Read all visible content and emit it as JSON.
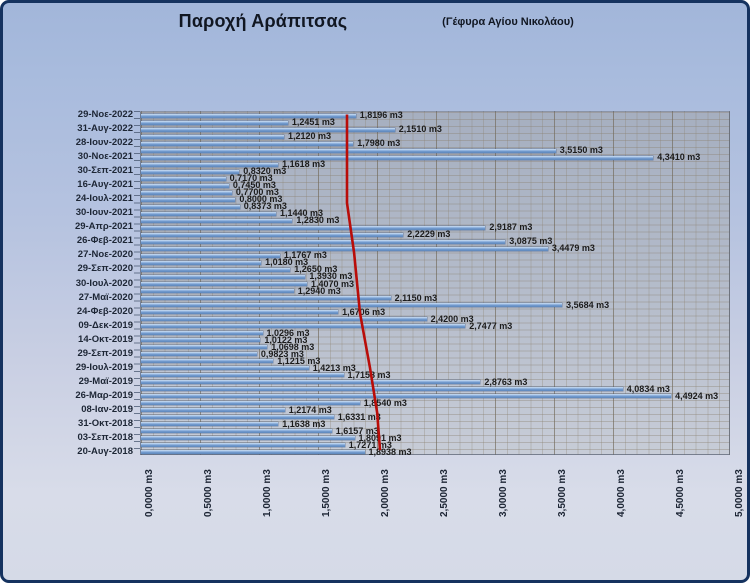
{
  "title": "Παροχή Αράπιτσας",
  "subtitle": "(Γέφυρα Αγίου Νικολάου)",
  "colors": {
    "bar": "#6b94c8",
    "trend_line": "#b90d09",
    "frame_border": "#15325f"
  },
  "chart_data": {
    "type": "bar",
    "orientation": "horizontal",
    "title": "Παροχή Αράπιτσας",
    "subtitle": "(Γέφυρα Αγίου Νικολάου)",
    "value_unit": "m3",
    "xlim": [
      0,
      5
    ],
    "grid": {
      "minor_step": 0.1,
      "major_step": 0.5,
      "grid_on": true
    },
    "legend": "none",
    "x_ticks": [
      "0,0000 m3",
      "0,5000 m3",
      "1,0000 m3",
      "1,5000 m3",
      "2,0000 m3",
      "2,5000 m3",
      "3,0000 m3",
      "3,5000 m3",
      "4,0000 m3",
      "4,5000 m3",
      "5,0000 m3"
    ],
    "bars": [
      {
        "label": "29-Νοε-2022",
        "value": 1.8196,
        "text": "1,8196 m3"
      },
      {
        "label": "",
        "value": 1.2451,
        "text": "1,2451 m3"
      },
      {
        "label": "31-Αυγ-2022",
        "value": 2.151,
        "text": "2,1510 m3"
      },
      {
        "label": "",
        "value": 1.212,
        "text": "1,2120 m3"
      },
      {
        "label": "28-Ιουν-2022",
        "value": 1.798,
        "text": "1,7980 m3"
      },
      {
        "label": "",
        "value": 3.515,
        "text": "3,5150 m3"
      },
      {
        "label": "30-Νοε-2021",
        "value": 4.341,
        "text": "4,3410 m3"
      },
      {
        "label": "",
        "value": 1.1618,
        "text": "1,1618 m3"
      },
      {
        "label": "30-Σεπ-2021",
        "value": 0.832,
        "text": "0,8320 m3"
      },
      {
        "label": "",
        "value": 0.717,
        "text": "0,7170 m3"
      },
      {
        "label": "16-Αυγ-2021",
        "value": 0.745,
        "text": "0,7450 m3"
      },
      {
        "label": "",
        "value": 0.77,
        "text": "0,7700 m3"
      },
      {
        "label": "24-Ιουλ-2021",
        "value": 0.8,
        "text": "0,8000 m3"
      },
      {
        "label": "",
        "value": 0.8373,
        "text": "0,8373 m3"
      },
      {
        "label": "30-Ιουν-2021",
        "value": 1.144,
        "text": "1,1440 m3"
      },
      {
        "label": "",
        "value": 1.283,
        "text": "1,2830 m3"
      },
      {
        "label": "29-Απρ-2021",
        "value": 2.9187,
        "text": "2,9187 m3"
      },
      {
        "label": "",
        "value": 2.2229,
        "text": "2,2229 m3"
      },
      {
        "label": "26-Φεβ-2021",
        "value": 3.0875,
        "text": "3,0875 m3"
      },
      {
        "label": "",
        "value": 3.4479,
        "text": "3,4479 m3"
      },
      {
        "label": "27-Νοε-2020",
        "value": 1.1767,
        "text": "1,1767 m3"
      },
      {
        "label": "",
        "value": 1.018,
        "text": "1,0180 m3"
      },
      {
        "label": "29-Σεπ-2020",
        "value": 1.265,
        "text": "1,2650 m3"
      },
      {
        "label": "",
        "value": 1.393,
        "text": "1,3930 m3"
      },
      {
        "label": "30-Ιουλ-2020",
        "value": 1.407,
        "text": "1,4070 m3"
      },
      {
        "label": "",
        "value": 1.294,
        "text": "1,2940 m3"
      },
      {
        "label": "27-Μαϊ-2020",
        "value": 2.115,
        "text": "2,1150 m3"
      },
      {
        "label": "",
        "value": 3.5684,
        "text": "3,5684 m3"
      },
      {
        "label": "24-Φεβ-2020",
        "value": 1.6706,
        "text": "1,6706 m3"
      },
      {
        "label": "",
        "value": 2.42,
        "text": "2,4200 m3"
      },
      {
        "label": "09-Δεκ-2019",
        "value": 2.7477,
        "text": "2,7477 m3"
      },
      {
        "label": "",
        "value": 1.0296,
        "text": "1,0296 m3"
      },
      {
        "label": "14-Οκτ-2019",
        "value": 1.0122,
        "text": "1,0122 m3"
      },
      {
        "label": "",
        "value": 1.0698,
        "text": "1,0698 m3"
      },
      {
        "label": "29-Σεπ-2019",
        "value": 0.9823,
        "text": "0,9823 m3"
      },
      {
        "label": "",
        "value": 1.1215,
        "text": "1,1215 m3"
      },
      {
        "label": "29-Ιουλ-2019",
        "value": 1.4213,
        "text": "1,4213 m3"
      },
      {
        "label": "",
        "value": 1.7158,
        "text": "1,7158 m3"
      },
      {
        "label": "29-Μαϊ-2019",
        "value": 2.8763,
        "text": "2,8763 m3"
      },
      {
        "label": "",
        "value": 4.0834,
        "text": "4,0834 m3"
      },
      {
        "label": "26-Μαρ-2019",
        "value": 4.4924,
        "text": "4,4924 m3"
      },
      {
        "label": "",
        "value": 1.854,
        "text": "1,8540 m3"
      },
      {
        "label": "08-Ιαν-2019",
        "value": 1.2174,
        "text": "1,2174 m3"
      },
      {
        "label": "",
        "value": 1.6331,
        "text": "1,6331 m3"
      },
      {
        "label": "31-Οκτ-2018",
        "value": 1.1638,
        "text": "1,1638 m3"
      },
      {
        "label": "",
        "value": 1.6157,
        "text": "1,6157 m3"
      },
      {
        "label": "03-Σεπ-2018",
        "value": 1.8091,
        "text": "1,8091 m3"
      },
      {
        "label": "",
        "value": 1.7271,
        "text": "1,7271 m3"
      },
      {
        "label": "20-Αυγ-2018",
        "value": 1.8938,
        "text": "1,8938 m3"
      }
    ],
    "trendline": {
      "color": "#b90d09",
      "points_row_value": [
        [
          0,
          1.754
        ],
        [
          12.6,
          1.754
        ],
        [
          19.7,
          1.814
        ],
        [
          28.3,
          1.864
        ],
        [
          36.1,
          1.949
        ],
        [
          42.5,
          2.01
        ],
        [
          47.8,
          2.034
        ]
      ]
    }
  }
}
